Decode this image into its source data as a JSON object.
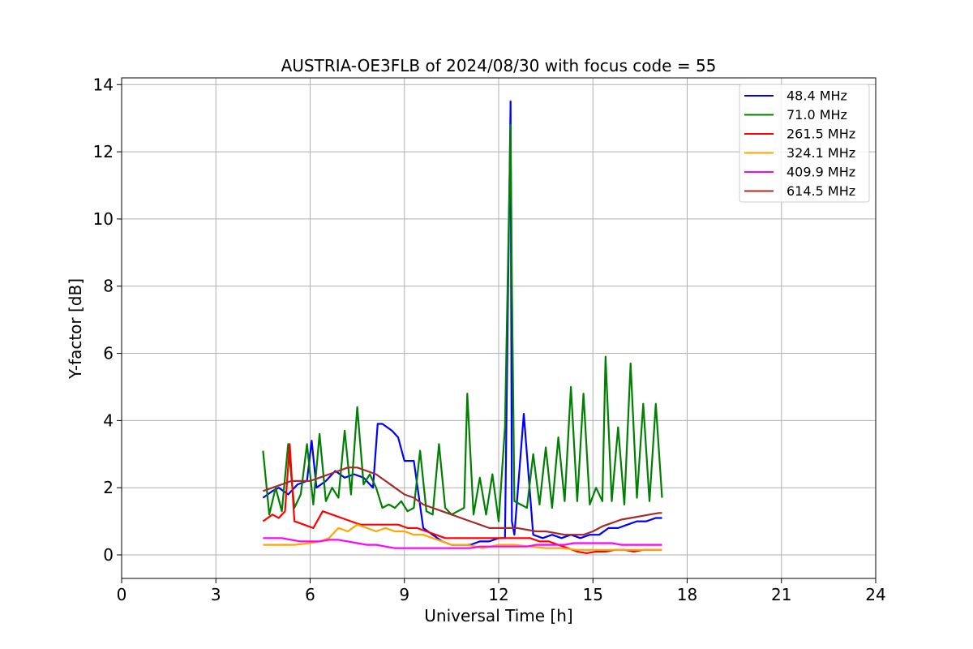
{
  "chart_data": {
    "type": "line",
    "title": "AUSTRIA-OE3FLB of 2024/08/30 with focus code = 55",
    "xlabel": "Universal Time [h]",
    "ylabel": "Y-factor [dB]",
    "xlim": [
      0,
      24
    ],
    "ylim": [
      -0.7,
      14.2
    ],
    "xticks": [
      0,
      3,
      6,
      9,
      12,
      15,
      18,
      21,
      24
    ],
    "xtick_labels": [
      "0",
      "3",
      "6",
      "9",
      "12",
      "15",
      "18",
      "21",
      "24"
    ],
    "yticks": [
      0,
      2,
      4,
      6,
      8,
      10,
      12,
      14
    ],
    "ytick_labels": [
      "0",
      "2",
      "4",
      "6",
      "8",
      "10",
      "12",
      "14"
    ],
    "grid": true,
    "legend_position": "top-right",
    "series": [
      {
        "name": " 48.4 MHz",
        "color": "#0000ff",
        "x": [
          4.5,
          4.8,
          5.0,
          5.3,
          5.6,
          5.9,
          6.05,
          6.2,
          6.5,
          6.8,
          7.1,
          7.4,
          7.7,
          8.0,
          8.15,
          8.3,
          8.6,
          8.8,
          9.0,
          9.3,
          9.6,
          9.9,
          10.2,
          10.5,
          10.8,
          11.1,
          11.4,
          11.7,
          12.0,
          12.2,
          12.3,
          12.38,
          12.42,
          12.5,
          12.8,
          13.1,
          13.4,
          13.7,
          14.0,
          14.3,
          14.6,
          14.9,
          15.2,
          15.5,
          15.8,
          16.1,
          16.4,
          16.7,
          17.0,
          17.2
        ],
        "y": [
          1.7,
          1.9,
          2.0,
          1.8,
          2.1,
          2.2,
          3.4,
          2.0,
          2.2,
          2.5,
          2.3,
          2.4,
          2.3,
          2.0,
          3.9,
          3.9,
          3.7,
          3.5,
          2.8,
          2.8,
          0.8,
          0.6,
          0.4,
          0.3,
          0.3,
          0.3,
          0.4,
          0.4,
          0.5,
          0.5,
          7.9,
          13.5,
          1.0,
          0.6,
          4.2,
          0.6,
          0.5,
          0.6,
          0.5,
          0.6,
          0.5,
          0.6,
          0.6,
          0.8,
          0.8,
          0.9,
          1.0,
          1.0,
          1.1,
          1.1
        ]
      },
      {
        "name": " 71.0 MHz",
        "color": "#008000",
        "x": [
          4.5,
          4.7,
          4.9,
          5.1,
          5.3,
          5.5,
          5.7,
          5.9,
          6.1,
          6.3,
          6.5,
          6.7,
          6.9,
          7.1,
          7.3,
          7.5,
          7.7,
          7.9,
          8.1,
          8.3,
          8.5,
          8.7,
          8.9,
          9.1,
          9.3,
          9.5,
          9.7,
          9.9,
          10.1,
          10.3,
          10.5,
          10.7,
          10.9,
          11.0,
          11.2,
          11.4,
          11.6,
          11.8,
          12.0,
          12.2,
          12.38,
          12.42,
          12.5,
          12.7,
          12.9,
          13.1,
          13.3,
          13.5,
          13.7,
          13.9,
          14.1,
          14.3,
          14.5,
          14.7,
          14.9,
          15.1,
          15.3,
          15.4,
          15.6,
          15.8,
          16.0,
          16.2,
          16.4,
          16.6,
          16.8,
          17.0,
          17.2
        ],
        "y": [
          3.1,
          1.2,
          2.0,
          1.3,
          3.3,
          1.4,
          1.8,
          3.3,
          1.5,
          3.6,
          1.6,
          2.0,
          1.7,
          3.7,
          1.8,
          4.4,
          2.1,
          2.4,
          2.0,
          1.4,
          1.5,
          1.4,
          1.6,
          1.3,
          1.4,
          3.1,
          1.3,
          1.2,
          3.3,
          1.4,
          1.2,
          1.3,
          1.4,
          4.8,
          1.2,
          2.3,
          1.2,
          2.4,
          1.0,
          3.8,
          12.8,
          8.1,
          1.6,
          1.5,
          1.4,
          3.0,
          1.5,
          3.2,
          1.4,
          3.5,
          1.6,
          5.0,
          1.6,
          4.8,
          1.5,
          2.0,
          1.6,
          5.9,
          1.6,
          3.8,
          1.5,
          5.7,
          1.7,
          4.5,
          1.6,
          4.5,
          1.7
        ]
      },
      {
        "name": "261.5 MHz",
        "color": "#ff0000",
        "x": [
          4.5,
          4.8,
          5.0,
          5.2,
          5.35,
          5.5,
          5.8,
          6.1,
          6.4,
          6.7,
          7.0,
          7.3,
          7.6,
          7.9,
          8.2,
          8.5,
          8.8,
          9.1,
          9.4,
          9.7,
          10.0,
          10.3,
          10.6,
          10.9,
          11.2,
          11.5,
          11.8,
          12.1,
          12.4,
          12.7,
          13.0,
          13.3,
          13.6,
          13.9,
          14.2,
          14.5,
          14.8,
          15.1,
          15.4,
          15.7,
          16.0,
          16.3,
          16.6,
          16.9,
          17.2
        ],
        "y": [
          1.0,
          1.2,
          1.1,
          1.3,
          3.3,
          1.0,
          0.9,
          0.8,
          1.3,
          1.2,
          1.1,
          1.0,
          0.9,
          0.9,
          0.9,
          0.9,
          0.9,
          0.8,
          0.8,
          0.7,
          0.6,
          0.5,
          0.5,
          0.5,
          0.5,
          0.5,
          0.5,
          0.5,
          0.5,
          0.5,
          0.5,
          0.4,
          0.4,
          0.3,
          0.2,
          0.1,
          0.05,
          0.1,
          0.1,
          0.15,
          0.15,
          0.1,
          0.15,
          0.15,
          0.15
        ]
      },
      {
        "name": "324.1 MHz",
        "color": "#ffa500",
        "x": [
          4.5,
          5.0,
          5.5,
          6.0,
          6.3,
          6.6,
          6.9,
          7.2,
          7.5,
          7.8,
          8.1,
          8.4,
          8.7,
          9.0,
          9.3,
          9.6,
          9.9,
          10.2,
          10.5,
          11.0,
          11.5,
          12.0,
          12.3,
          12.5,
          13.0,
          13.5,
          14.0,
          14.5,
          15.0,
          15.5,
          16.0,
          16.5,
          17.0,
          17.2
        ],
        "y": [
          0.3,
          0.3,
          0.3,
          0.35,
          0.4,
          0.5,
          0.8,
          0.7,
          0.9,
          0.8,
          0.7,
          0.8,
          0.7,
          0.7,
          0.6,
          0.6,
          0.5,
          0.4,
          0.3,
          0.3,
          0.2,
          0.3,
          0.3,
          0.3,
          0.25,
          0.2,
          0.2,
          0.15,
          0.15,
          0.15,
          0.15,
          0.15,
          0.15,
          0.15
        ]
      },
      {
        "name": "409.9 MHz",
        "color": "#ff00ff",
        "x": [
          4.5,
          4.8,
          5.1,
          5.4,
          5.7,
          6.0,
          6.3,
          6.6,
          6.9,
          7.2,
          7.5,
          7.8,
          8.1,
          8.4,
          8.7,
          9.0,
          9.3,
          9.6,
          9.9,
          10.2,
          10.5,
          10.8,
          11.1,
          11.4,
          11.7,
          12.0,
          12.3,
          12.6,
          12.9,
          13.2,
          13.5,
          13.8,
          14.1,
          14.4,
          14.7,
          15.0,
          15.3,
          15.6,
          15.9,
          16.2,
          16.5,
          16.8,
          17.1,
          17.2
        ],
        "y": [
          0.5,
          0.5,
          0.5,
          0.45,
          0.4,
          0.4,
          0.4,
          0.45,
          0.45,
          0.4,
          0.35,
          0.3,
          0.3,
          0.25,
          0.2,
          0.2,
          0.2,
          0.2,
          0.2,
          0.2,
          0.2,
          0.2,
          0.2,
          0.25,
          0.25,
          0.25,
          0.25,
          0.25,
          0.25,
          0.3,
          0.3,
          0.3,
          0.3,
          0.35,
          0.35,
          0.35,
          0.35,
          0.35,
          0.3,
          0.3,
          0.3,
          0.3,
          0.3,
          0.3
        ]
      },
      {
        "name": "614.5 MHz",
        "color": "#a52a2a",
        "x": [
          4.5,
          4.8,
          5.1,
          5.4,
          5.7,
          6.0,
          6.3,
          6.6,
          6.9,
          7.2,
          7.5,
          7.8,
          8.1,
          8.4,
          8.7,
          9.0,
          9.3,
          9.6,
          9.9,
          10.2,
          10.5,
          10.8,
          11.1,
          11.4,
          11.7,
          12.0,
          12.3,
          12.6,
          12.9,
          13.2,
          13.5,
          13.8,
          14.1,
          14.4,
          14.7,
          15.0,
          15.3,
          15.6,
          15.9,
          16.2,
          16.5,
          16.8,
          17.1,
          17.2
        ],
        "y": [
          1.9,
          2.0,
          2.1,
          2.2,
          2.2,
          2.2,
          2.3,
          2.4,
          2.5,
          2.6,
          2.6,
          2.5,
          2.4,
          2.2,
          2.0,
          1.8,
          1.7,
          1.5,
          1.4,
          1.3,
          1.2,
          1.1,
          1.0,
          0.9,
          0.8,
          0.8,
          0.8,
          0.8,
          0.75,
          0.7,
          0.7,
          0.65,
          0.6,
          0.6,
          0.6,
          0.7,
          0.85,
          0.95,
          1.05,
          1.1,
          1.15,
          1.2,
          1.25,
          1.25
        ]
      }
    ]
  }
}
